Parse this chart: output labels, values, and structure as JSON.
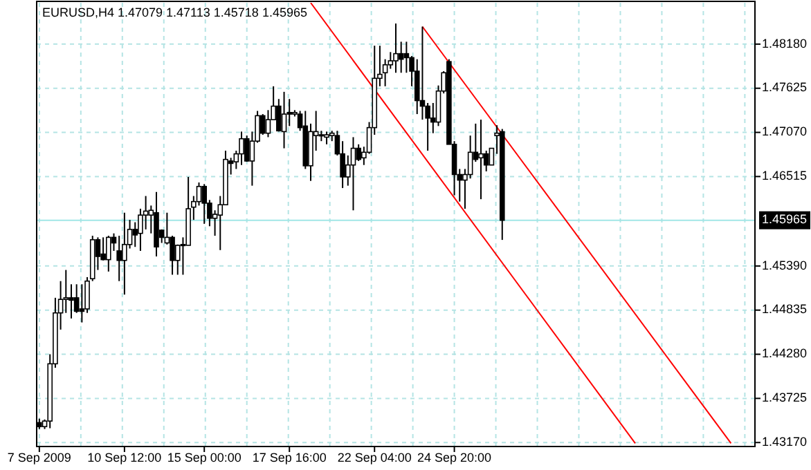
{
  "chart_data": {
    "type": "candlestick",
    "title": "EURUSD,H4 1.47079 1.47113 1.45718 1.45965",
    "categories": [
      "7 Sep 2009",
      null,
      null,
      null,
      null,
      null,
      null,
      null,
      null,
      null,
      null,
      null,
      null,
      null,
      null,
      null,
      "10 Sep 12:00",
      null,
      null,
      null,
      null,
      null,
      null,
      null,
      null,
      null,
      null,
      null,
      null,
      null,
      null,
      "15 Sep 00:00",
      null,
      null,
      null,
      null,
      null,
      null,
      null,
      null,
      null,
      null,
      null,
      null,
      null,
      null,
      null,
      "17 Sep 16:00",
      null,
      null,
      null,
      null,
      null,
      null,
      null,
      null,
      null,
      null,
      null,
      null,
      null,
      null,
      null,
      "22 Sep 04:00",
      null,
      null,
      null,
      null,
      null,
      null,
      null,
      null,
      null,
      null,
      null,
      null,
      null,
      null,
      "24 Sep 20:00",
      null,
      null,
      null,
      null,
      null,
      null,
      null,
      null,
      null,
      null,
      null,
      null,
      null,
      null,
      null,
      null,
      null,
      null,
      null,
      null,
      null,
      null,
      null,
      null,
      null,
      null,
      null,
      null,
      null,
      null,
      null,
      null,
      null,
      null,
      null,
      null,
      null,
      null,
      null,
      null,
      null,
      null,
      null,
      null,
      null,
      null,
      null,
      null,
      null,
      null,
      null,
      null,
      null,
      null,
      null,
      null
    ],
    "ohlc": [
      [
        1.4342,
        1.4347,
        1.4334,
        1.4337
      ],
      [
        1.4337,
        1.4346,
        1.4334,
        1.4344
      ],
      [
        1.4344,
        1.4428,
        1.4335,
        1.4416
      ],
      [
        1.4416,
        1.4499,
        1.4411,
        1.448
      ],
      [
        1.448,
        1.452,
        1.4459,
        1.4497
      ],
      [
        1.4497,
        1.4534,
        1.448,
        1.4499
      ],
      [
        1.4499,
        1.4516,
        1.4473,
        1.4496
      ],
      [
        1.4499,
        1.4516,
        1.448,
        1.4482
      ],
      [
        1.4485,
        1.4516,
        1.4468,
        1.4482
      ],
      [
        1.4485,
        1.4525,
        1.448,
        1.452
      ],
      [
        1.4523,
        1.4577,
        1.452,
        1.4572
      ],
      [
        1.4572,
        1.4575,
        1.4534,
        1.4551
      ],
      [
        1.4554,
        1.4575,
        1.4546,
        1.4547
      ],
      [
        1.4547,
        1.4577,
        1.4532,
        1.4575
      ],
      [
        1.4575,
        1.458,
        1.4558,
        1.4568
      ],
      [
        1.4558,
        1.4577,
        1.452,
        1.4546
      ],
      [
        1.4546,
        1.4606,
        1.4503,
        1.4566
      ],
      [
        1.4566,
        1.4597,
        1.4561,
        1.4585
      ],
      [
        1.4585,
        1.4594,
        1.4563,
        1.4578
      ],
      [
        1.458,
        1.4611,
        1.4558,
        1.4603
      ],
      [
        1.4603,
        1.4627,
        1.4585,
        1.4608
      ],
      [
        1.4603,
        1.4615,
        1.458,
        1.4609
      ],
      [
        1.4606,
        1.4632,
        1.4551,
        1.4563
      ],
      [
        1.4584,
        1.4585,
        1.4568,
        1.4575
      ],
      [
        1.4568,
        1.4606,
        1.4566,
        1.4575
      ],
      [
        1.4575,
        1.4577,
        1.4528,
        1.4546
      ],
      [
        1.4546,
        1.4566,
        1.4528,
        1.4565
      ],
      [
        1.4565,
        1.4575,
        1.4528,
        1.4566
      ],
      [
        1.4565,
        1.4651,
        1.4565,
        1.4611
      ],
      [
        1.4613,
        1.4627,
        1.4597,
        1.462
      ],
      [
        1.462,
        1.4644,
        1.4615,
        1.4639
      ],
      [
        1.4639,
        1.4642,
        1.4592,
        1.4618
      ],
      [
        1.4618,
        1.4622,
        1.4589,
        1.4599
      ],
      [
        1.4599,
        1.4609,
        1.4577,
        1.4604
      ],
      [
        1.4603,
        1.4627,
        1.4559,
        1.4616
      ],
      [
        1.4616,
        1.4684,
        1.4616,
        1.4673
      ],
      [
        1.4671,
        1.4675,
        1.4654,
        1.4668
      ],
      [
        1.467,
        1.4684,
        1.4661,
        1.468
      ],
      [
        1.468,
        1.4708,
        1.4666,
        1.4699
      ],
      [
        1.4699,
        1.4703,
        1.467,
        1.4671
      ],
      [
        1.4671,
        1.4708,
        1.464,
        1.4696
      ],
      [
        1.4696,
        1.4734,
        1.4694,
        1.4728
      ],
      [
        1.4728,
        1.473,
        1.4704,
        1.4706
      ],
      [
        1.4706,
        1.4735,
        1.4701,
        1.4723
      ],
      [
        1.4723,
        1.4765,
        1.4723,
        1.474
      ],
      [
        1.474,
        1.4749,
        1.4708,
        1.4709
      ],
      [
        1.4708,
        1.4758,
        1.4687,
        1.473
      ],
      [
        1.4732,
        1.4749,
        1.4715,
        1.473
      ],
      [
        1.473,
        1.4735,
        1.4727,
        1.4732
      ],
      [
        1.473,
        1.4734,
        1.4709,
        1.4713
      ],
      [
        1.4715,
        1.4734,
        1.4661,
        1.4665
      ],
      [
        1.4665,
        1.4718,
        1.4646,
        1.4708
      ],
      [
        1.4703,
        1.4734,
        1.4684,
        1.4708
      ],
      [
        1.4703,
        1.4709,
        1.4696,
        1.4704
      ],
      [
        1.4701,
        1.4708,
        1.4692,
        1.4704
      ],
      [
        1.4703,
        1.4709,
        1.4696,
        1.4706
      ],
      [
        1.4703,
        1.4709,
        1.4678,
        1.468
      ],
      [
        1.468,
        1.4696,
        1.4637,
        1.4651
      ],
      [
        1.4651,
        1.4678,
        1.464,
        1.4666
      ],
      [
        1.4666,
        1.4701,
        1.4609,
        1.4687
      ],
      [
        1.4687,
        1.4692,
        1.4671,
        1.4673
      ],
      [
        1.4675,
        1.4689,
        1.4666,
        1.4682
      ],
      [
        1.4682,
        1.472,
        1.468,
        1.4713
      ],
      [
        1.4713,
        1.4816,
        1.4704,
        1.4775
      ],
      [
        1.4775,
        1.4816,
        1.4765,
        1.478
      ],
      [
        1.4782,
        1.4799,
        1.4765,
        1.4792
      ],
      [
        1.4792,
        1.4808,
        1.4787,
        1.4797
      ],
      [
        1.4797,
        1.4844,
        1.4782,
        1.4806
      ],
      [
        1.4806,
        1.4821,
        1.4782,
        1.4799
      ],
      [
        1.4806,
        1.4821,
        1.4782,
        1.4801
      ],
      [
        1.4801,
        1.4803,
        1.4765,
        1.4784
      ],
      [
        1.4784,
        1.4799,
        1.473,
        1.4747
      ],
      [
        1.4747,
        1.484,
        1.4723,
        1.474
      ],
      [
        1.474,
        1.4744,
        1.4684,
        1.4725
      ],
      [
        1.4725,
        1.4744,
        1.4706,
        1.472
      ],
      [
        1.472,
        1.4766,
        1.4715,
        1.4759
      ],
      [
        1.4759,
        1.4784,
        1.4756,
        1.4782
      ],
      [
        1.4796,
        1.4799,
        1.4692,
        1.4692
      ],
      [
        1.4692,
        1.4696,
        1.4628,
        1.4654
      ],
      [
        1.4654,
        1.4661,
        1.462,
        1.4647
      ],
      [
        1.4647,
        1.4661,
        1.4611,
        1.4654
      ],
      [
        1.4654,
        1.4703,
        1.4649,
        1.4682
      ],
      [
        1.4682,
        1.4718,
        1.467,
        1.4673
      ],
      [
        1.4675,
        1.4723,
        1.4623,
        1.468
      ],
      [
        1.468,
        1.4684,
        1.4658,
        1.4666
      ],
      [
        1.4666,
        1.4687,
        1.4666,
        1.4687
      ],
      [
        1.4703,
        1.4716,
        1.468,
        1.4706
      ],
      [
        1.47079,
        1.47113,
        1.45718,
        1.45965
      ],
      null,
      null,
      null,
      null,
      null,
      null,
      null,
      null,
      null,
      null,
      null,
      null,
      null,
      null,
      null,
      null,
      null,
      null,
      null,
      null,
      null,
      null,
      null,
      null,
      null,
      null,
      null,
      null,
      null,
      null,
      null,
      null,
      null,
      null,
      null,
      null,
      null,
      null,
      null,
      null,
      null,
      null,
      null,
      null,
      null,
      null,
      null
    ],
    "color": "#000000",
    "series": [
      {
        "type": "line",
        "color": "#ff0000",
        "values": [
          null,
          null,
          null,
          null,
          null,
          null,
          null,
          null,
          null,
          null,
          null,
          null,
          null,
          null,
          null,
          null,
          null,
          null,
          null,
          null,
          null,
          null,
          null,
          null,
          null,
          null,
          null,
          null,
          null,
          null,
          null,
          null,
          null,
          null,
          null,
          null,
          null,
          null,
          null,
          null,
          null,
          null,
          null,
          null,
          null,
          null,
          null,
          null,
          null,
          null,
          null,
          null,
          null,
          null,
          null,
          null,
          null,
          null,
          null,
          null,
          null,
          null,
          null,
          null,
          null,
          null,
          null,
          null,
          null,
          null,
          null,
          null,
          1.484,
          null,
          null,
          null,
          null,
          null,
          null,
          null,
          null,
          null,
          null,
          null,
          null,
          null,
          null,
          null,
          null,
          null,
          null,
          null,
          null,
          null,
          null,
          null,
          null,
          null,
          null,
          null,
          null,
          null,
          null,
          null,
          null,
          null,
          null,
          null,
          null,
          null,
          null,
          null,
          null,
          null,
          null,
          null,
          null,
          null,
          null,
          null,
          null,
          null,
          null,
          null,
          null,
          null,
          null,
          null,
          null,
          null,
          1.4316,
          null,
          null,
          null,
          null
        ]
      },
      {
        "type": "line",
        "color": "#ff0000",
        "values": [
          null,
          null,
          null,
          null,
          null,
          null,
          null,
          null,
          null,
          null,
          null,
          null,
          null,
          null,
          null,
          null,
          null,
          null,
          null,
          null,
          null,
          null,
          null,
          null,
          null,
          null,
          null,
          null,
          null,
          null,
          null,
          null,
          null,
          null,
          null,
          null,
          null,
          null,
          null,
          null,
          null,
          null,
          null,
          null,
          null,
          null,
          null,
          null,
          null,
          null,
          null,
          1.487,
          null,
          null,
          null,
          null,
          null,
          null,
          null,
          null,
          null,
          null,
          null,
          null,
          null,
          null,
          null,
          null,
          null,
          null,
          null,
          null,
          null,
          null,
          null,
          null,
          null,
          null,
          null,
          null,
          null,
          null,
          null,
          null,
          null,
          null,
          null,
          null,
          null,
          null,
          null,
          null,
          null,
          null,
          null,
          null,
          null,
          null,
          null,
          null,
          null,
          null,
          null,
          null,
          null,
          null,
          null,
          null,
          null,
          null,
          null,
          null,
          1.4316,
          null,
          null,
          null,
          null,
          null,
          null,
          null,
          null,
          null,
          null,
          null,
          null,
          null,
          null,
          null,
          null,
          null,
          null,
          null,
          null,
          null,
          null
        ]
      }
    ],
    "ylim": [
      1.4312,
      1.487
    ],
    "yticks": [
      {
        "value": 1.4818,
        "label": "1.48180"
      },
      {
        "value": 1.47625,
        "label": "1.47625"
      },
      {
        "value": 1.4707,
        "label": "1.47070"
      },
      {
        "value": 1.46515,
        "label": "1.46515"
      },
      {
        "value": 1.4539,
        "label": "1.45390"
      },
      {
        "value": 1.44835,
        "label": "1.44835"
      },
      {
        "value": 1.4428,
        "label": "1.44280"
      },
      {
        "value": 1.43725,
        "label": "1.43725"
      },
      {
        "value": 1.4317,
        "label": "1.43170"
      }
    ],
    "ref_lines": [
      {
        "axis": "y",
        "value": 1.45965,
        "label": "1.45965",
        "color": "#a0e6e6"
      }
    ],
    "grid": true
  }
}
